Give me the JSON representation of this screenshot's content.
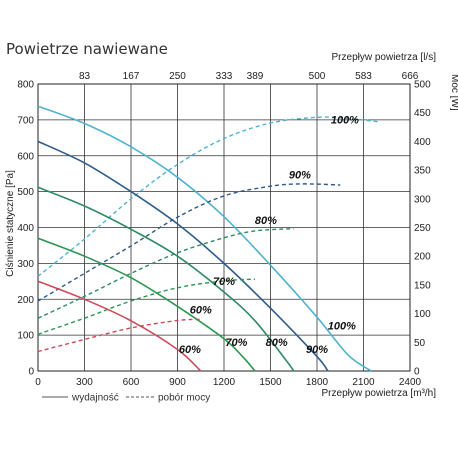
{
  "chart_data": {
    "type": "line",
    "title": "Powietrze nawiewane",
    "xlabel": "Przepływ powietrza [m³/h]",
    "xlabel_top": "Przepływ powietrza [l/s]",
    "ylabel": "Ciśnienie statyczne [Pa]",
    "ylabel_right": "Moc [W]",
    "xlim": [
      0,
      2400
    ],
    "ylim": [
      0,
      800
    ],
    "ylim_right": [
      0,
      500
    ],
    "x_ticks": [
      "0",
      "300",
      "600",
      "900",
      "1200",
      "1500",
      "1800",
      "2100",
      "2400"
    ],
    "x_ticks_top": [
      {
        "label": "83",
        "x": 300
      },
      {
        "label": "167",
        "x": 600
      },
      {
        "label": "250",
        "x": 900
      },
      {
        "label": "333",
        "x": 1200
      },
      {
        "label": "389",
        "x": 1400
      },
      {
        "label": "500",
        "x": 1800
      },
      {
        "label": "583",
        "x": 2100
      },
      {
        "label": "666",
        "x": 2400
      }
    ],
    "y_ticks": [
      "0",
      "100",
      "200",
      "300",
      "400",
      "500",
      "600",
      "700",
      "800"
    ],
    "y_ticks_right": [
      "0",
      "50",
      "100",
      "150",
      "200",
      "250",
      "300",
      "350",
      "400",
      "450",
      "500"
    ],
    "grid": true,
    "legend": {
      "placement": "bottom-left",
      "items": [
        {
          "label": "wydajność",
          "style": "solid"
        },
        {
          "label": "pobór mocy",
          "style": "dashed"
        }
      ]
    },
    "series": [
      {
        "label": "100%",
        "color": "#4fb3cf",
        "pressure": [
          [
            0,
            738
          ],
          [
            300,
            690
          ],
          [
            600,
            625
          ],
          [
            900,
            540
          ],
          [
            1200,
            430
          ],
          [
            1500,
            295
          ],
          [
            1800,
            150
          ],
          [
            2000,
            45
          ],
          [
            2150,
            0
          ]
        ],
        "power": [
          [
            0,
            165
          ],
          [
            300,
            230
          ],
          [
            600,
            300
          ],
          [
            900,
            360
          ],
          [
            1200,
            405
          ],
          [
            1500,
            432
          ],
          [
            1800,
            442
          ],
          [
            2000,
            440
          ],
          [
            2200,
            434
          ]
        ],
        "label_pos": {
          "pressure": [
            1960,
            115
          ],
          "power": [
            1980,
            690
          ]
        }
      },
      {
        "label": "90%",
        "color": "#2d5b8a",
        "pressure": [
          [
            0,
            640
          ],
          [
            300,
            580
          ],
          [
            600,
            500
          ],
          [
            900,
            410
          ],
          [
            1200,
            300
          ],
          [
            1500,
            175
          ],
          [
            1800,
            40
          ],
          [
            1870,
            0
          ]
        ],
        "power": [
          [
            0,
            122
          ],
          [
            300,
            170
          ],
          [
            600,
            218
          ],
          [
            900,
            268
          ],
          [
            1200,
            305
          ],
          [
            1500,
            322
          ],
          [
            1700,
            326
          ],
          [
            1950,
            324
          ]
        ],
        "label_pos": {
          "pressure": [
            1800,
            50
          ],
          "power": [
            1690,
            536
          ]
        }
      },
      {
        "label": "80%",
        "color": "#2e8b64",
        "pressure": [
          [
            0,
            512
          ],
          [
            300,
            460
          ],
          [
            600,
            395
          ],
          [
            900,
            320
          ],
          [
            1200,
            220
          ],
          [
            1400,
            140
          ],
          [
            1600,
            30
          ],
          [
            1650,
            0
          ]
        ],
        "power": [
          [
            0,
            92
          ],
          [
            300,
            130
          ],
          [
            600,
            170
          ],
          [
            900,
            206
          ],
          [
            1200,
            232
          ],
          [
            1400,
            244
          ],
          [
            1650,
            248
          ]
        ],
        "label_pos": {
          "pressure": [
            1540,
            70
          ],
          "power": [
            1470,
            410
          ]
        }
      },
      {
        "label": "70%",
        "color": "#2a9650",
        "pressure": [
          [
            0,
            370
          ],
          [
            300,
            320
          ],
          [
            600,
            260
          ],
          [
            900,
            180
          ],
          [
            1200,
            90
          ],
          [
            1320,
            40
          ],
          [
            1400,
            0
          ]
        ],
        "power": [
          [
            0,
            64
          ],
          [
            300,
            92
          ],
          [
            600,
            122
          ],
          [
            900,
            145
          ],
          [
            1200,
            157
          ],
          [
            1400,
            160
          ]
        ],
        "label_pos": {
          "pressure": [
            1280,
            70
          ],
          "power": [
            1200,
            240
          ]
        }
      },
      {
        "label": "60%",
        "color": "#d04a5a",
        "pressure": [
          [
            0,
            250
          ],
          [
            300,
            200
          ],
          [
            600,
            140
          ],
          [
            900,
            60
          ],
          [
            1050,
            0
          ]
        ],
        "power": [
          [
            0,
            34
          ],
          [
            300,
            55
          ],
          [
            600,
            75
          ],
          [
            900,
            88
          ],
          [
            1050,
            90
          ]
        ],
        "label_pos": {
          "pressure": [
            980,
            50
          ],
          "power": [
            1050,
            160
          ]
        }
      }
    ]
  }
}
